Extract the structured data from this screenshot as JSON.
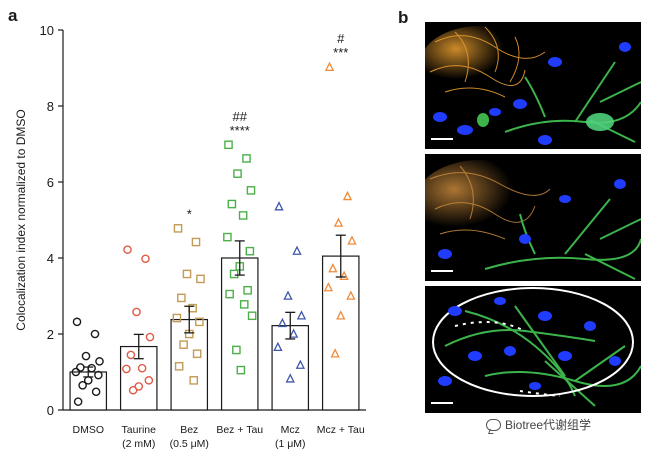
{
  "panels": {
    "a": "a",
    "b": "b"
  },
  "chart_data": {
    "type": "bar",
    "categories": [
      "DMSO",
      "Taurine",
      "Bez",
      "Bez + Tau",
      "Mcz",
      "Mcz + Tau"
    ],
    "category_sublabels": [
      "",
      "(2 mM)",
      "(0.5 μM)",
      "",
      "(1 μM)",
      ""
    ],
    "ylabel": "Colocalization index normalized to DMSO",
    "ylim": [
      0,
      10
    ],
    "yticks": [
      0,
      2,
      4,
      6,
      8,
      10
    ],
    "grid": false,
    "values": [
      1.0,
      1.67,
      2.38,
      4.0,
      2.22,
      4.05
    ],
    "errors": [
      0.13,
      0.32,
      0.35,
      0.45,
      0.35,
      0.55
    ],
    "significance": [
      "",
      "",
      "*",
      "****",
      "",
      "***"
    ],
    "significance_hash": [
      "",
      "",
      "",
      "##",
      "",
      "#"
    ],
    "point_markers": [
      "circle",
      "circle",
      "square",
      "square",
      "triangle",
      "triangle"
    ],
    "point_colors": [
      "#1a1a1a",
      "#e05a47",
      "#c49a55",
      "#4daf4a",
      "#3f57a8",
      "#f08a38"
    ],
    "points": [
      [
        2.32,
        2.0,
        1.42,
        1.28,
        1.12,
        1.1,
        1.0,
        0.92,
        0.78,
        0.65,
        0.48,
        0.22
      ],
      [
        4.22,
        3.98,
        2.58,
        1.92,
        1.45,
        1.1,
        1.08,
        0.78,
        0.62,
        0.52
      ],
      [
        4.78,
        4.42,
        3.58,
        3.45,
        2.95,
        2.68,
        2.42,
        2.32,
        2.0,
        1.72,
        1.48,
        1.15,
        0.78
      ],
      [
        6.98,
        6.62,
        6.22,
        5.78,
        5.42,
        5.12,
        4.55,
        4.18,
        3.78,
        3.58,
        3.15,
        3.05,
        2.78,
        2.48,
        1.58,
        1.05
      ],
      [
        5.35,
        4.18,
        3.0,
        2.48,
        2.28,
        2.0,
        1.65,
        1.18,
        0.82
      ],
      [
        9.02,
        5.62,
        4.92,
        4.45,
        3.72,
        3.52,
        3.22,
        3.0,
        2.48,
        1.48
      ]
    ]
  },
  "micrographs": [
    {
      "name": "overlay",
      "colors": [
        "#e39a2e",
        "#3cb44b",
        "#1f3cff"
      ]
    },
    {
      "name": "orange-green",
      "colors": [
        "#c98a3c",
        "#3cb44b",
        "#1f3cff"
      ]
    },
    {
      "name": "colocalization",
      "colors": [
        "#3cb44b",
        "#1f3cff",
        "#ffffff"
      ]
    }
  ],
  "watermark": "Biotree代谢组学"
}
